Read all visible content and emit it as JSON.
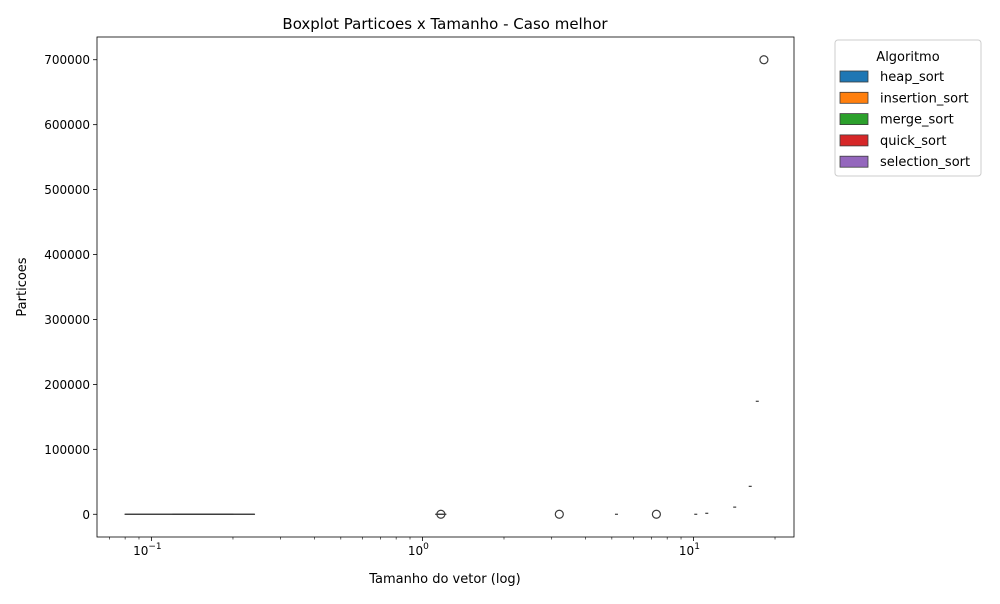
{
  "chart_data": {
    "type": "box",
    "title": "Boxplot Particoes x Tamanho - Caso melhor",
    "xlabel": "Tamanho do vetor (log)",
    "ylabel": "Particoes",
    "x_scale": "log",
    "xlim": [
      0.063,
      23.5
    ],
    "ylim": [
      -35000,
      735000
    ],
    "grid": false,
    "y_ticks": [
      0,
      100000,
      200000,
      300000,
      400000,
      500000,
      600000,
      700000
    ],
    "y_tick_labels": [
      "0",
      "100000",
      "200000",
      "300000",
      "400000",
      "500000",
      "600000",
      "700000"
    ],
    "x_ticks": [
      0.1,
      1,
      10
    ],
    "x_tick_labels": [
      "10",
      "10",
      "10"
    ],
    "x_tick_exponents": [
      "−1",
      "0",
      "1"
    ],
    "legend": {
      "title": "Algoritmo",
      "placement": "outside-top-right",
      "entries": [
        {
          "name": "heap_sort",
          "color": "#1f77b4"
        },
        {
          "name": "insertion_sort",
          "color": "#ff7f0e"
        },
        {
          "name": "merge_sort",
          "color": "#2ca02c"
        },
        {
          "name": "quick_sort",
          "color": "#d62728"
        },
        {
          "name": "selection_sort",
          "color": "#9467bd"
        }
      ]
    },
    "boxes": [
      {
        "x_low": 0.08,
        "x_high": 0.24,
        "q1": 0,
        "median": 0,
        "q3": 0,
        "whisker_low": 0,
        "whisker_high": 0
      },
      {
        "x_low": 0.12,
        "x_high": 0.2,
        "q1": 0,
        "median": 0,
        "q3": 0,
        "whisker_low": 0,
        "whisker_high": 0
      },
      {
        "x_low": 1.12,
        "x_high": 1.22,
        "q1": 0,
        "median": 0,
        "q3": 0,
        "whisker_low": 0,
        "whisker_high": 0
      }
    ],
    "outliers": [
      {
        "x": 1.17,
        "y": 0
      },
      {
        "x": 3.2,
        "y": 0
      },
      {
        "x": 7.3,
        "y": 0
      },
      {
        "x": 18.2,
        "y": 700000
      }
    ],
    "small_markers": [
      {
        "x": 5.2,
        "y": 0
      },
      {
        "x": 10.2,
        "y": 0
      },
      {
        "x": 11.2,
        "y": 1500
      },
      {
        "x": 14.2,
        "y": 11000
      },
      {
        "x": 16.2,
        "y": 43000
      },
      {
        "x": 17.2,
        "y": 174000
      }
    ]
  }
}
